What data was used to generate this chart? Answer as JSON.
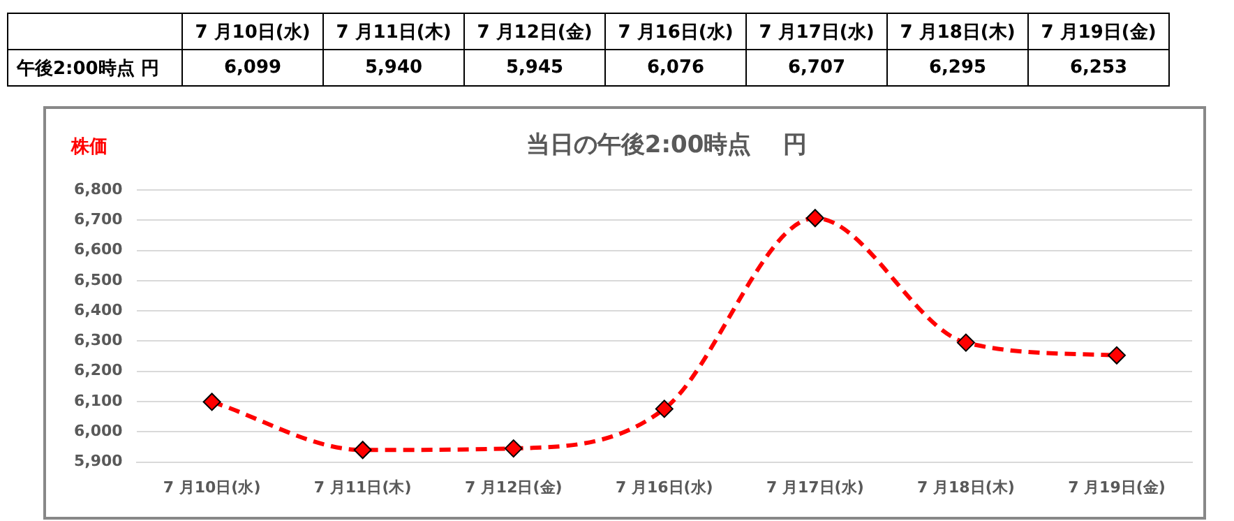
{
  "chart_data": {
    "type": "line",
    "title": "当日の午後2:00時点　 円",
    "ylabel": "株価",
    "categories": [
      "7 月10日(水)",
      "7 月11日(木)",
      "7 月12日(金)",
      "7 月16日(水)",
      "7 月17日(水)",
      "7 月18日(木)",
      "7 月19日(金)"
    ],
    "series": [
      {
        "color": "#ff0000",
        "values": [
          6099,
          5940,
          5945,
          6076,
          6707,
          6295,
          6253
        ],
        "value_labels": [
          "6,099",
          "5,940",
          "5,945",
          "6,076",
          "6,707",
          "6,295",
          "6,253"
        ]
      }
    ],
    "ylim": [
      5900,
      6800
    ],
    "yticks": [
      {
        "value": 5900,
        "label": "5,900"
      },
      {
        "value": 6000,
        "label": "6,000"
      },
      {
        "value": 6100,
        "label": "6,100"
      },
      {
        "value": 6200,
        "label": "6,200"
      },
      {
        "value": 6300,
        "label": "6,300"
      },
      {
        "value": 6400,
        "label": "6,400"
      },
      {
        "value": 6500,
        "label": "6,500"
      },
      {
        "value": 6600,
        "label": "6,600"
      },
      {
        "value": 6700,
        "label": "6,700"
      },
      {
        "value": 6800,
        "label": "6,800"
      }
    ],
    "grid": "y",
    "legend": false,
    "marker": "diamond",
    "line_style": "dashed",
    "annotations": [
      "午後2:00時点  円"
    ]
  }
}
